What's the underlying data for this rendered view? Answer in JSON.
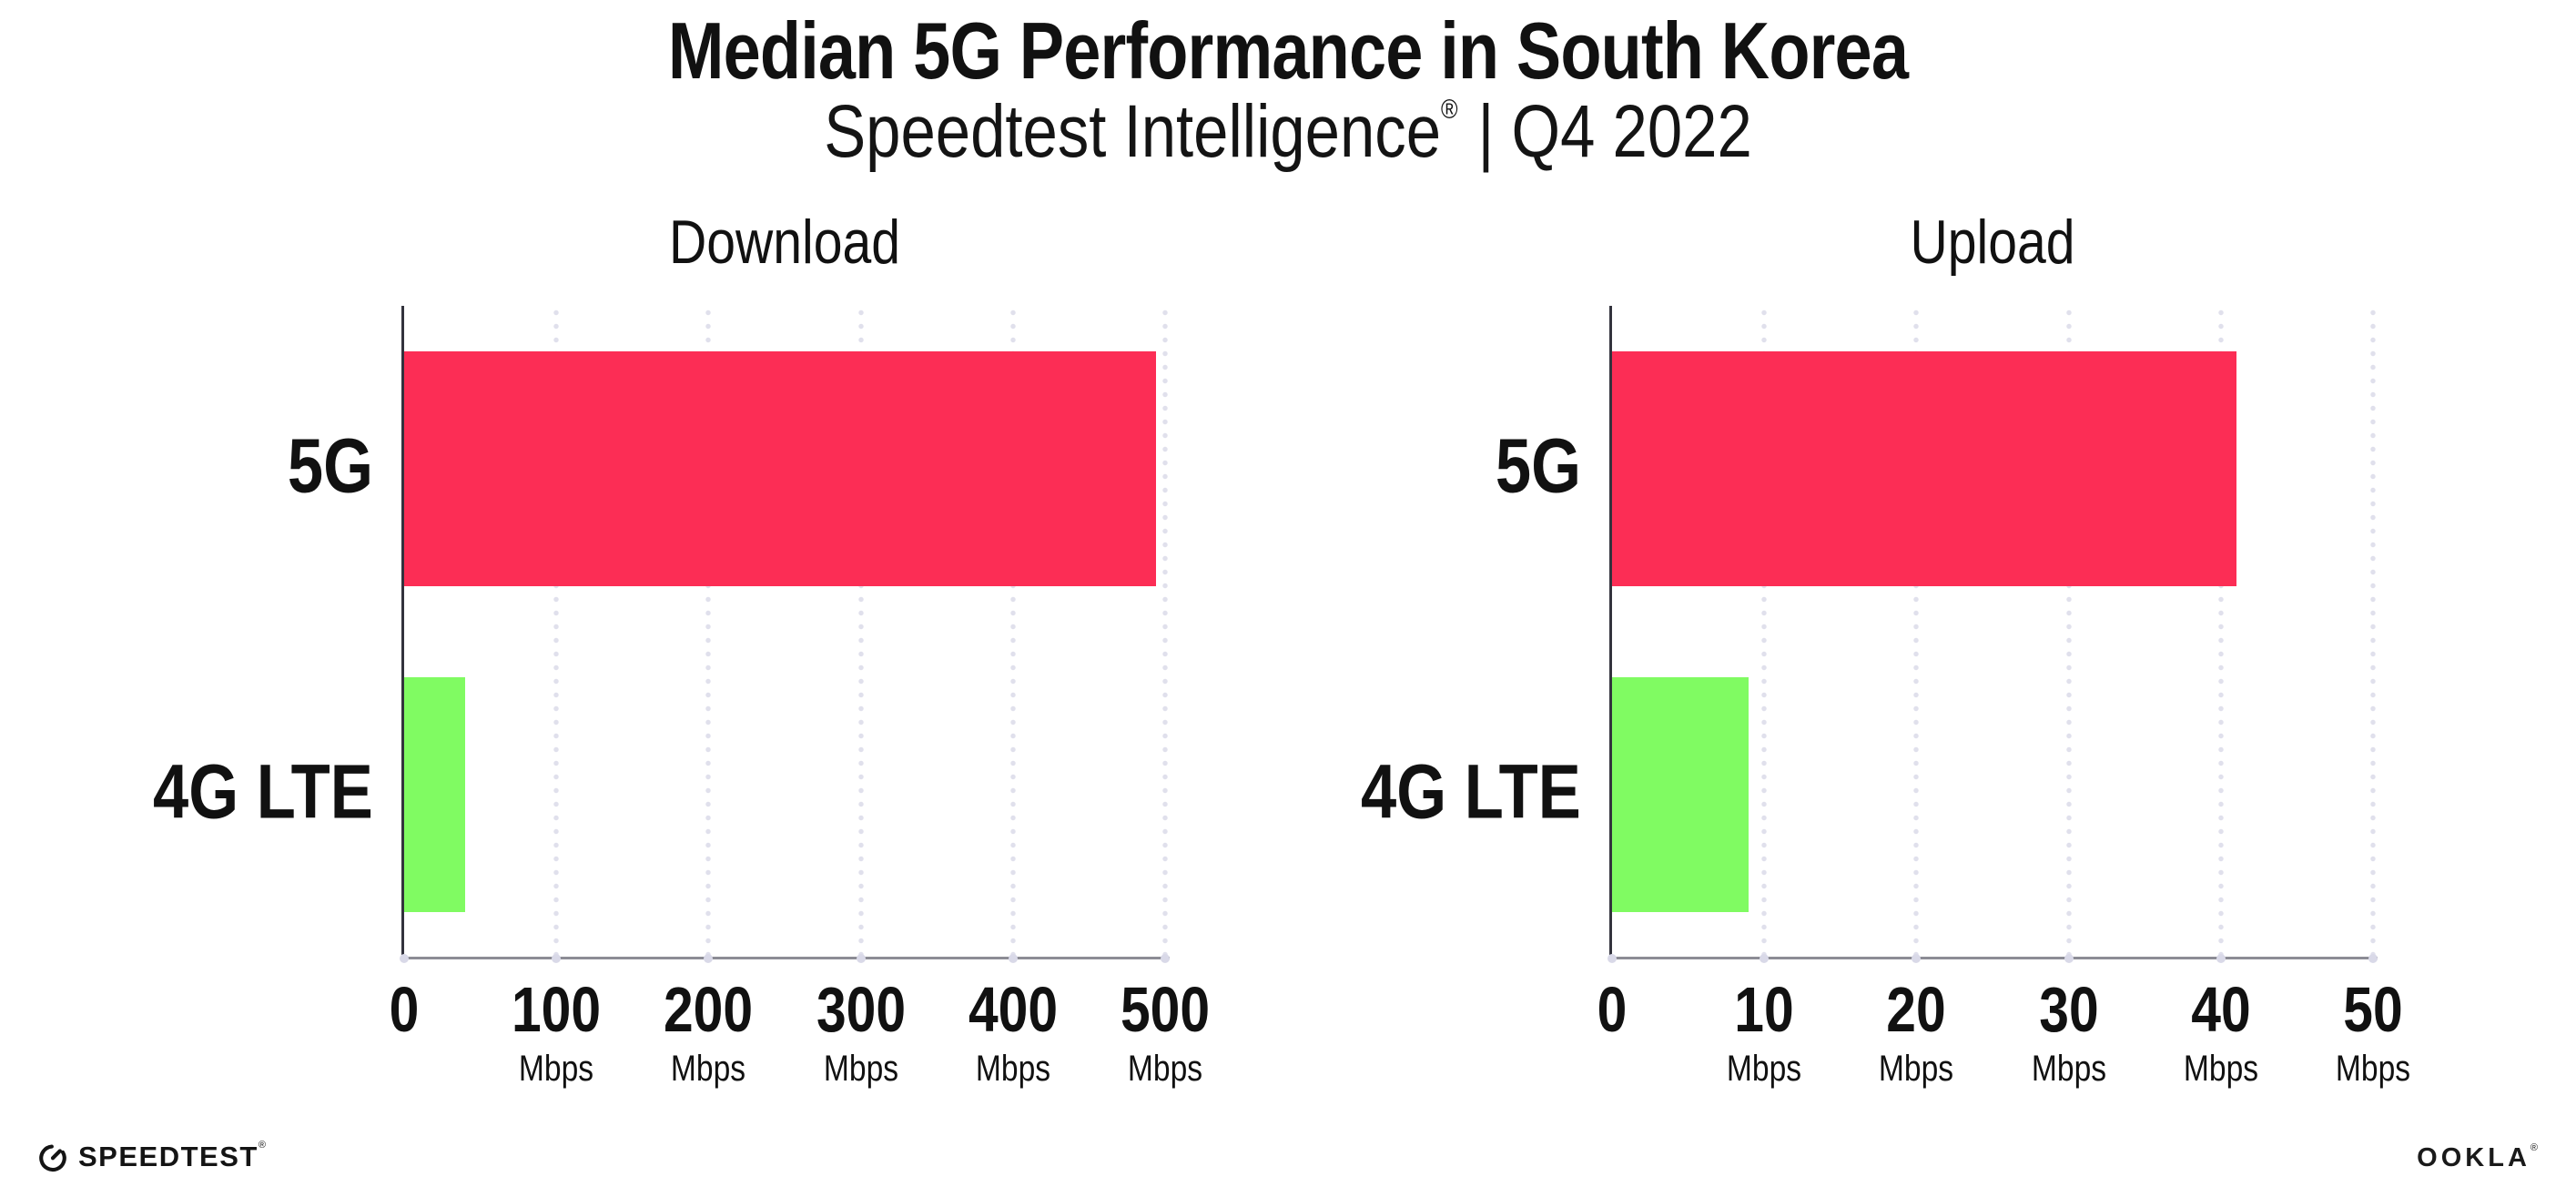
{
  "header": {
    "title": "Median 5G Performance in South Korea",
    "subtitle_brand": "Speedtest Intelligence",
    "subtitle_reg": "®",
    "subtitle_rest": "| Q4 2022"
  },
  "chart_data": [
    {
      "type": "bar",
      "orientation": "horizontal",
      "title": "Download",
      "categories": [
        "5G",
        "4G LTE"
      ],
      "values": [
        494,
        40
      ],
      "unit": "Mbps",
      "xlim": [
        0,
        500
      ],
      "xticks": [
        0,
        100,
        200,
        300,
        400,
        500
      ],
      "bar_colors": [
        "#FC2D55",
        "#80FB62"
      ],
      "grid": "dotted-vertical",
      "legend": "none"
    },
    {
      "type": "bar",
      "orientation": "horizontal",
      "title": "Upload",
      "categories": [
        "5G",
        "4G LTE"
      ],
      "values": [
        41,
        9
      ],
      "unit": "Mbps",
      "xlim": [
        0,
        50
      ],
      "xticks": [
        0,
        10,
        20,
        30,
        40,
        50
      ],
      "bar_colors": [
        "#FC2D55",
        "#80FB62"
      ],
      "grid": "dotted-vertical",
      "legend": "none"
    }
  ],
  "colors": {
    "bar_5g": "#FC2D55",
    "bar_4g_lte": "#80FB62",
    "grid_dot": "#E0E0EC",
    "axis_left": "#33333D",
    "axis_bottom": "#8C8C95",
    "text": "#111111"
  },
  "footer": {
    "speedtest_label": "SPEEDTEST",
    "speedtest_mark": "®",
    "ookla_label": "OOKLA",
    "ookla_mark": "®"
  }
}
